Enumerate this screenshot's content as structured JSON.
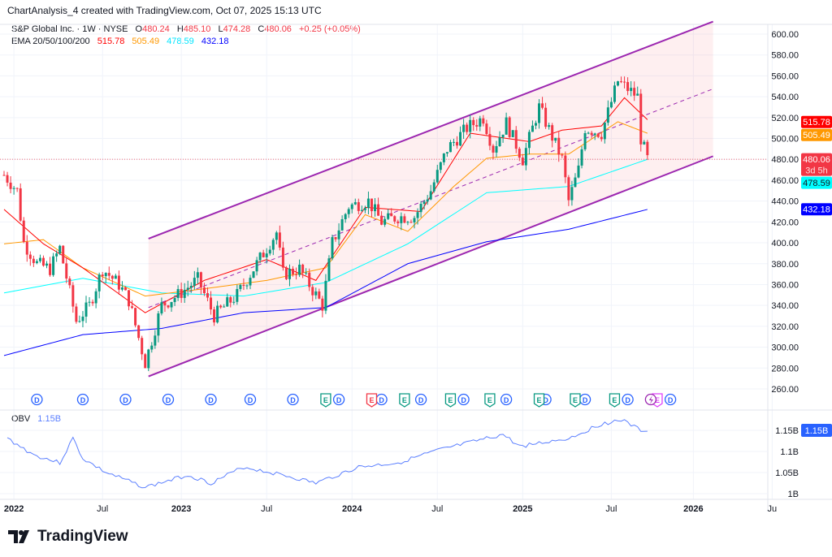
{
  "caption": "ChartAnalysis_4 created with TradingView.com, Oct 07, 2025 15:13 UTC",
  "symbol": {
    "name": "S&P Global Inc. · 1W · NYSE",
    "o_label": "O",
    "open": "480.24",
    "h_label": "H",
    "high": "485.10",
    "l_label": "L",
    "low": "474.28",
    "c_label": "C",
    "close": "480.06",
    "change": "+0.25 (+0.05%)"
  },
  "ema": {
    "label": "EMA 20/50/100/200",
    "v20": "515.78",
    "v50": "505.49",
    "v100": "478.59",
    "v200": "432.18"
  },
  "obv": {
    "label": "OBV",
    "value": "1.15B"
  },
  "countdown": "3d 5h",
  "colors": {
    "up": "#089981",
    "down": "#f23645",
    "ema20": "#ff0000",
    "ema50": "#ff9800",
    "ema100": "#00ffff",
    "ema200": "#0000ff",
    "channel": "#9c27b0",
    "obv": "#5b7fff"
  },
  "brand": "TradingView",
  "chart_data": {
    "type": "candlestick",
    "title": "S&P Global Inc. 1W NYSE",
    "x_unit": "weeks since Dec 20 2021",
    "price_ticks": [
      "600.00",
      "580.00",
      "560.00",
      "540.00",
      "520.00",
      "500.00",
      "480.00",
      "460.00",
      "440.00",
      "420.00",
      "400.00",
      "380.00",
      "360.00",
      "340.00",
      "320.00",
      "300.00",
      "280.00",
      "260.00"
    ],
    "ylim": [
      260,
      600
    ],
    "time_ticks": [
      {
        "label": "2022",
        "w": 3,
        "bold": true
      },
      {
        "label": "Jul",
        "w": 30
      },
      {
        "label": "2023",
        "w": 54,
        "bold": true
      },
      {
        "label": "Jul",
        "w": 80
      },
      {
        "label": "2024",
        "w": 106,
        "bold": true
      },
      {
        "label": "Jul",
        "w": 132
      },
      {
        "label": "2025",
        "w": 158,
        "bold": true
      },
      {
        "label": "Jul",
        "w": 185
      },
      {
        "label": "2026",
        "w": 210,
        "bold": true
      },
      {
        "label": "Ju",
        "w": 234
      }
    ],
    "close_keypoints": [
      [
        0,
        465
      ],
      [
        4,
        450
      ],
      [
        6,
        400
      ],
      [
        10,
        380
      ],
      [
        14,
        375
      ],
      [
        17,
        395
      ],
      [
        22,
        325
      ],
      [
        26,
        340
      ],
      [
        30,
        375
      ],
      [
        35,
        360
      ],
      [
        38,
        345
      ],
      [
        43,
        285
      ],
      [
        48,
        340
      ],
      [
        53,
        350
      ],
      [
        59,
        365
      ],
      [
        64,
        330
      ],
      [
        71,
        350
      ],
      [
        78,
        385
      ],
      [
        83,
        410
      ],
      [
        85,
        370
      ],
      [
        90,
        375
      ],
      [
        97,
        340
      ],
      [
        100,
        400
      ],
      [
        105,
        435
      ],
      [
        111,
        440
      ],
      [
        115,
        420
      ],
      [
        120,
        425
      ],
      [
        125,
        425
      ],
      [
        130,
        450
      ],
      [
        135,
        490
      ],
      [
        141,
        510
      ],
      [
        146,
        520
      ],
      [
        149,
        490
      ],
      [
        153,
        515
      ],
      [
        158,
        480
      ],
      [
        163,
        530
      ],
      [
        170,
        480
      ],
      [
        172,
        440
      ],
      [
        175,
        470
      ],
      [
        177,
        510
      ],
      [
        182,
        505
      ],
      [
        187,
        555
      ],
      [
        191,
        545
      ],
      [
        193,
        540
      ],
      [
        194,
        500
      ],
      [
        196,
        480
      ]
    ],
    "ema20": [
      [
        0,
        432
      ],
      [
        12,
        399
      ],
      [
        24,
        376
      ],
      [
        43,
        333
      ],
      [
        61,
        364
      ],
      [
        80,
        384
      ],
      [
        95,
        364
      ],
      [
        110,
        434
      ],
      [
        127,
        430
      ],
      [
        142,
        505
      ],
      [
        160,
        497
      ],
      [
        170,
        508
      ],
      [
        182,
        512
      ],
      [
        189,
        539
      ],
      [
        196,
        518
      ]
    ],
    "ema50": [
      [
        0,
        399
      ],
      [
        12,
        403
      ],
      [
        24,
        376
      ],
      [
        43,
        349
      ],
      [
        61,
        356
      ],
      [
        80,
        364
      ],
      [
        98,
        376
      ],
      [
        110,
        427
      ],
      [
        123,
        411
      ],
      [
        137,
        454
      ],
      [
        147,
        481
      ],
      [
        160,
        485
      ],
      [
        172,
        485
      ],
      [
        187,
        516
      ],
      [
        196,
        505
      ]
    ],
    "ema100": [
      [
        0,
        352
      ],
      [
        24,
        366
      ],
      [
        48,
        352
      ],
      [
        73,
        349
      ],
      [
        98,
        362
      ],
      [
        123,
        399
      ],
      [
        147,
        448
      ],
      [
        172,
        454
      ],
      [
        196,
        480
      ]
    ],
    "ema200": [
      [
        0,
        292
      ],
      [
        24,
        312
      ],
      [
        48,
        318
      ],
      [
        73,
        333
      ],
      [
        98,
        338
      ],
      [
        123,
        380
      ],
      [
        147,
        401
      ],
      [
        172,
        413
      ],
      [
        196,
        432
      ]
    ],
    "channel": {
      "upper": [
        [
          44,
          404
        ],
        [
          216,
          612
        ]
      ],
      "lower": [
        [
          44,
          272
        ],
        [
          216,
          483
        ]
      ]
    },
    "last_price": 480.06,
    "obv": {
      "ticks": [
        "1.15B",
        "1.1B",
        "1.05B",
        "1B"
      ],
      "ylim": [
        1.0,
        1.2
      ],
      "points": [
        [
          1,
          1.131
        ],
        [
          9,
          1.092
        ],
        [
          17,
          1.073
        ],
        [
          21,
          1.131
        ],
        [
          24,
          1.083
        ],
        [
          31,
          1.05
        ],
        [
          43,
          1.015
        ],
        [
          56,
          1.044
        ],
        [
          63,
          1.025
        ],
        [
          73,
          1.063
        ],
        [
          85,
          1.044
        ],
        [
          95,
          1.025
        ],
        [
          108,
          1.063
        ],
        [
          120,
          1.073
        ],
        [
          132,
          1.102
        ],
        [
          142,
          1.121
        ],
        [
          152,
          1.14
        ],
        [
          157,
          1.112
        ],
        [
          172,
          1.131
        ],
        [
          182,
          1.165
        ],
        [
          188,
          1.175
        ],
        [
          194,
          1.15
        ],
        [
          196,
          1.15
        ]
      ]
    },
    "events": {
      "dividends": [
        10,
        24,
        37,
        50,
        63,
        75,
        88,
        102,
        115,
        127,
        140,
        153,
        165,
        177,
        190,
        203
      ],
      "earnings": [
        {
          "w": 98,
          "c": "#089981"
        },
        {
          "w": 112,
          "c": "#f23645"
        },
        {
          "w": 122,
          "c": "#089981"
        },
        {
          "w": 136,
          "c": "#089981"
        },
        {
          "w": 148,
          "c": "#089981"
        },
        {
          "w": 163,
          "c": "#089981"
        },
        {
          "w": 174,
          "c": "#089981"
        },
        {
          "w": 186,
          "c": "#089981"
        },
        {
          "w": 199,
          "c": "#e040fb"
        }
      ],
      "splits": [
        197
      ]
    },
    "event_labels": {
      "dividend": "D",
      "earnings": "E"
    }
  }
}
